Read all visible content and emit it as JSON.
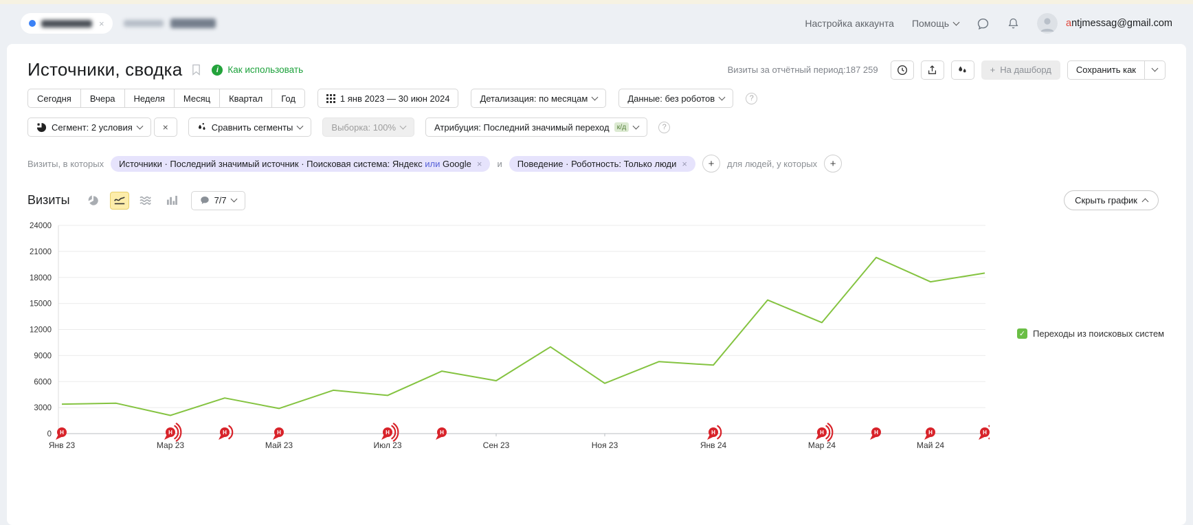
{
  "header": {
    "account_settings": "Настройка аккаунта",
    "help_label": "Помощь",
    "email": "antjmessag@gmail.com",
    "email_accent_color": "#e0453a"
  },
  "title_bar": {
    "title": "Источники, сводка",
    "how_to_use": "Как использовать",
    "visits_label": "Визиты за отчётный период:",
    "visits_value": "187 259",
    "dashboard_button": "На дашборд",
    "save_as_button": "Сохранить как"
  },
  "period_bar": {
    "presets": [
      "Сегодня",
      "Вчера",
      "Неделя",
      "Месяц",
      "Квартал",
      "Год"
    ],
    "date_range": "1 янв 2023 — 30 июн 2024",
    "detalization": "Детализация: по месяцам",
    "data_mode": "Данные: без роботов"
  },
  "segment_bar": {
    "segment": "Сегмент: 2 условия",
    "compare": "Сравнить сегменты",
    "sampling": "Выборка: 100%",
    "attribution": "Атрибуция: Последний значимый переход",
    "attribution_badge": "к/д"
  },
  "filters": {
    "visits_in_which": "Визиты, в которых",
    "chip1_main": "Источники · Последний значимый источник · Поисковая система: Яндекс",
    "chip1_operator": "или",
    "chip1_tail": "Google",
    "connector": "и",
    "chip2": "Поведение · Роботность: Только люди",
    "for_people": "для людей, у которых"
  },
  "chart_header": {
    "metric": "Визиты",
    "comments_count": "7/7",
    "hide_chart": "Скрыть график"
  },
  "legend": {
    "label": "Переходы из поисковых систем",
    "color": "#6abe45"
  },
  "misc": {
    "close": "×",
    "plus": "+",
    "question": "?",
    "check": "✓"
  },
  "chart_data": {
    "type": "line",
    "title": "Визиты",
    "xlabel": "",
    "ylabel": "",
    "grid": true,
    "legend_position": "right",
    "ylim": [
      0,
      24000
    ],
    "y_ticks": [
      0,
      3000,
      6000,
      9000,
      12000,
      15000,
      18000,
      21000,
      24000
    ],
    "x": [
      "Янв 23",
      "Фев 23",
      "Мар 23",
      "Апр 23",
      "Май 23",
      "Июн 23",
      "Июл 23",
      "Авг 23",
      "Сен 23",
      "Окт 23",
      "Ноя 23",
      "Дек 23",
      "Янв 24",
      "Фев 24",
      "Мар 24",
      "Апр 24",
      "Май 24",
      "Июн 24"
    ],
    "x_tick_labels": [
      "Янв 23",
      "Мар 23",
      "Май 23",
      "Июл 23",
      "Сен 23",
      "Ноя 23",
      "Янв 24",
      "Мар 24",
      "Май 24"
    ],
    "series": [
      {
        "name": "Переходы из поисковых систем",
        "color": "#84c340",
        "values": [
          3400,
          3500,
          2100,
          4100,
          2900,
          5000,
          4400,
          7200,
          6100,
          10000,
          5800,
          8300,
          7900,
          15400,
          12800,
          20300,
          17500,
          18500
        ]
      }
    ],
    "marker_letter": "Н",
    "marker_color": "#d8232a",
    "axis_markers": [
      {
        "x": "Янв 23",
        "arcs": 0
      },
      {
        "x": "Мар 23",
        "arcs": 2
      },
      {
        "x": "Апр 23",
        "arcs": 1
      },
      {
        "x": "Май 23",
        "arcs": 0
      },
      {
        "x": "Июл 23",
        "arcs": 2
      },
      {
        "x": "Авг 23",
        "arcs": 0
      },
      {
        "x": "Янв 24",
        "arcs": 1
      },
      {
        "x": "Мар 24",
        "arcs": 2
      },
      {
        "x": "Апр 24",
        "arcs": 0
      },
      {
        "x": "Май 24",
        "arcs": 0
      },
      {
        "x": "Июн 24",
        "arcs": 2
      }
    ]
  }
}
